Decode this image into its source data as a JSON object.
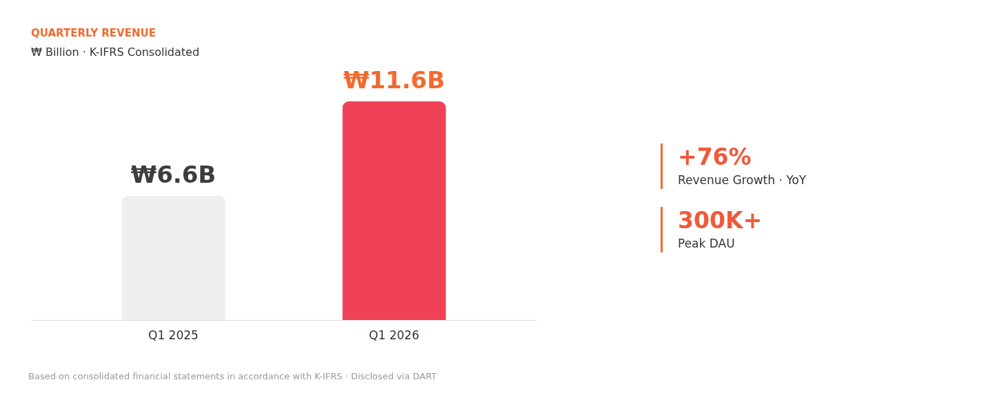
{
  "chart_data": [
    {
      "type": "bar",
      "title": "QUARTERLY REVENUE",
      "subtitle": "₩ Billion · K-IFRS Consolidated",
      "categories": [
        "Q1 2025",
        "Q1 2026"
      ],
      "values": [
        6.6,
        11.6
      ],
      "colors": [
        "#efefef",
        "#f04257"
      ],
      "value_labels": [
        "₩6.6B",
        "₩11.6B"
      ],
      "annotations": [
        "Based on consolidated financial statements in accordance with K-IFRS · Disclosed via DART"
      ]
    },
    {
      "type": "other",
      "annotations": [
        "+76%",
        "Revenue Growth · YoY",
        "300K+",
        "Peak DAU"
      ]
    }
  ]
}
